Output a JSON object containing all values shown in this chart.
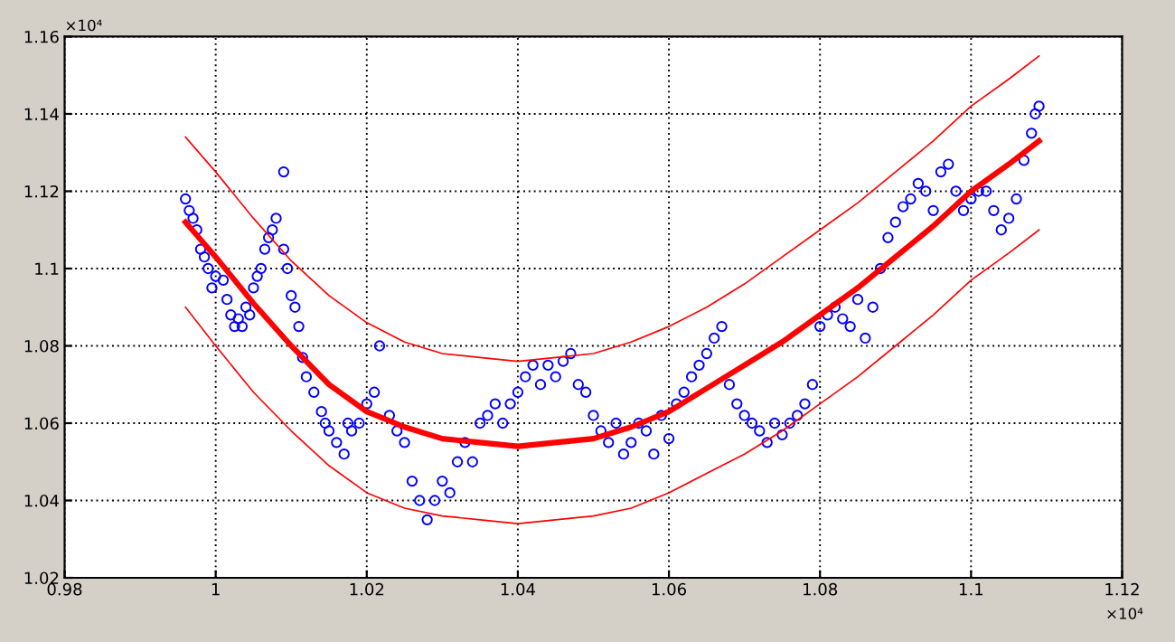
{
  "chart_data": {
    "type": "scatter",
    "annotations": [
      "×10⁴",
      "×10⁴"
    ],
    "xlim": [
      0.98,
      1.12
    ],
    "xticks": [
      0.98,
      1,
      1.02,
      1.04,
      1.06,
      1.08,
      1.1,
      1.12
    ],
    "ylim": [
      1.02,
      1.16
    ],
    "yticks": [
      1.02,
      1.04,
      1.06,
      1.08,
      1.1,
      1.12,
      1.14,
      1.16
    ],
    "grid": true,
    "series": [
      {
        "color": "#0000ff",
        "marker": "circle",
        "x": [
          0.996,
          0.9965,
          0.997,
          0.9975,
          0.998,
          0.9985,
          0.999,
          0.9995,
          1.0,
          1.001,
          1.0015,
          1.002,
          1.0025,
          1.003,
          1.0035,
          1.004,
          1.0045,
          1.005,
          1.0055,
          1.006,
          1.0065,
          1.007,
          1.0075,
          1.008,
          1.009,
          1.009,
          1.0095,
          1.01,
          1.0105,
          1.011,
          1.0115,
          1.012,
          1.013,
          1.014,
          1.0145,
          1.015,
          1.016,
          1.017,
          1.0175,
          1.018,
          1.019,
          1.02,
          1.021,
          1.0217,
          1.023,
          1.024,
          1.025,
          1.026,
          1.027,
          1.028,
          1.029,
          1.03,
          1.031,
          1.032,
          1.033,
          1.034,
          1.035,
          1.036,
          1.037,
          1.038,
          1.039,
          1.04,
          1.041,
          1.042,
          1.043,
          1.044,
          1.045,
          1.046,
          1.047,
          1.048,
          1.049,
          1.05,
          1.051,
          1.052,
          1.053,
          1.054,
          1.055,
          1.056,
          1.057,
          1.058,
          1.059,
          1.06,
          1.061,
          1.062,
          1.063,
          1.064,
          1.065,
          1.066,
          1.067,
          1.068,
          1.069,
          1.07,
          1.071,
          1.072,
          1.073,
          1.074,
          1.075,
          1.076,
          1.077,
          1.078,
          1.079,
          1.08,
          1.081,
          1.082,
          1.083,
          1.084,
          1.085,
          1.086,
          1.087,
          1.088,
          1.089,
          1.09,
          1.091,
          1.092,
          1.093,
          1.094,
          1.095,
          1.096,
          1.097,
          1.098,
          1.099,
          1.1,
          1.101,
          1.102,
          1.103,
          1.104,
          1.105,
          1.106,
          1.107,
          1.108,
          1.1085,
          1.109
        ],
        "values": [
          1.118,
          1.115,
          1.113,
          1.11,
          1.105,
          1.103,
          1.1,
          1.095,
          1.098,
          1.097,
          1.092,
          1.088,
          1.085,
          1.087,
          1.085,
          1.09,
          1.088,
          1.095,
          1.098,
          1.1,
          1.105,
          1.108,
          1.11,
          1.113,
          1.125,
          1.105,
          1.1,
          1.093,
          1.09,
          1.085,
          1.077,
          1.072,
          1.068,
          1.063,
          1.06,
          1.058,
          1.055,
          1.052,
          1.06,
          1.058,
          1.06,
          1.065,
          1.068,
          1.08,
          1.062,
          1.058,
          1.055,
          1.045,
          1.04,
          1.035,
          1.04,
          1.045,
          1.042,
          1.05,
          1.055,
          1.05,
          1.06,
          1.062,
          1.065,
          1.06,
          1.065,
          1.068,
          1.072,
          1.075,
          1.07,
          1.075,
          1.072,
          1.076,
          1.078,
          1.07,
          1.068,
          1.062,
          1.058,
          1.055,
          1.06,
          1.052,
          1.055,
          1.06,
          1.058,
          1.052,
          1.062,
          1.056,
          1.065,
          1.068,
          1.072,
          1.075,
          1.078,
          1.082,
          1.085,
          1.07,
          1.065,
          1.062,
          1.06,
          1.058,
          1.055,
          1.06,
          1.057,
          1.06,
          1.062,
          1.065,
          1.07,
          1.085,
          1.088,
          1.09,
          1.087,
          1.085,
          1.092,
          1.082,
          1.09,
          1.1,
          1.108,
          1.112,
          1.116,
          1.118,
          1.122,
          1.12,
          1.115,
          1.125,
          1.127,
          1.12,
          1.115,
          1.118,
          1.12,
          1.12,
          1.115,
          1.11,
          1.113,
          1.118,
          1.128,
          1.135,
          1.14,
          1.142
        ]
      },
      {
        "type": "line",
        "color": "#ff0000",
        "marker": "none",
        "x": [
          0.996,
          1.0,
          1.005,
          1.01,
          1.015,
          1.02,
          1.025,
          1.03,
          1.035,
          1.04,
          1.045,
          1.05,
          1.055,
          1.06,
          1.065,
          1.07,
          1.075,
          1.08,
          1.085,
          1.09,
          1.095,
          1.1,
          1.105,
          1.109
        ],
        "values": [
          1.112,
          1.103,
          1.091,
          1.08,
          1.07,
          1.063,
          1.059,
          1.056,
          1.055,
          1.054,
          1.055,
          1.056,
          1.059,
          1.063,
          1.069,
          1.075,
          1.081,
          1.088,
          1.095,
          1.103,
          1.111,
          1.12,
          1.127,
          1.133
        ]
      },
      {
        "type": "line",
        "color": "#ff0000",
        "marker": "none",
        "x": [
          0.996,
          1.0,
          1.005,
          1.01,
          1.015,
          1.02,
          1.025,
          1.03,
          1.035,
          1.04,
          1.045,
          1.05,
          1.055,
          1.06,
          1.065,
          1.07,
          1.075,
          1.08,
          1.085,
          1.09,
          1.095,
          1.1,
          1.105,
          1.109
        ],
        "values": [
          1.134,
          1.125,
          1.113,
          1.102,
          1.093,
          1.086,
          1.081,
          1.078,
          1.077,
          1.076,
          1.077,
          1.078,
          1.081,
          1.085,
          1.09,
          1.096,
          1.103,
          1.11,
          1.117,
          1.125,
          1.133,
          1.142,
          1.149,
          1.155
        ]
      },
      {
        "type": "line",
        "color": "#ff0000",
        "marker": "none",
        "x": [
          0.996,
          1.0,
          1.005,
          1.01,
          1.015,
          1.02,
          1.025,
          1.03,
          1.035,
          1.04,
          1.045,
          1.05,
          1.055,
          1.06,
          1.065,
          1.07,
          1.075,
          1.08,
          1.085,
          1.09,
          1.095,
          1.1,
          1.105,
          1.109
        ],
        "values": [
          1.09,
          1.08,
          1.068,
          1.058,
          1.049,
          1.042,
          1.038,
          1.036,
          1.035,
          1.034,
          1.035,
          1.036,
          1.038,
          1.042,
          1.047,
          1.052,
          1.058,
          1.065,
          1.072,
          1.08,
          1.088,
          1.097,
          1.104,
          1.11
        ]
      }
    ]
  }
}
